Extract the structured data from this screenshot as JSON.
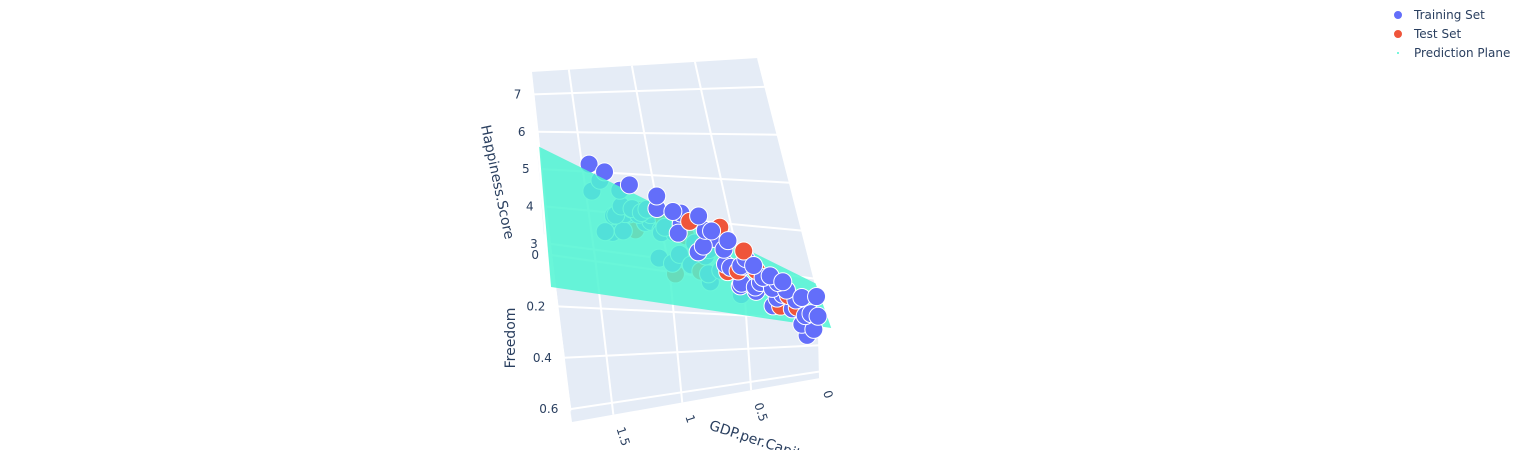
{
  "colors": {
    "training": "#636efa",
    "test": "#ef553b",
    "plane": "#4ff5d2",
    "pane": "#e5ecf6",
    "grid": "#ffffff",
    "text": "#2a3f5f"
  },
  "legend": {
    "items": [
      {
        "label": "Training Set",
        "marker": "circle"
      },
      {
        "label": "Test Set",
        "marker": "circle"
      },
      {
        "label": "Prediction Plane",
        "marker": "dot"
      }
    ]
  },
  "chart_data": {
    "type": "scatter",
    "dimensions": "3d",
    "axes": {
      "x": {
        "label": "GDP.per.Capita.",
        "ticks": [
          "0",
          "0.5",
          "1",
          "1.5"
        ],
        "range": [
          0,
          1.8
        ]
      },
      "y": {
        "label": "Freedom",
        "ticks": [
          "0",
          "0.2",
          "0.4",
          "0.6"
        ],
        "range": [
          0,
          0.65
        ]
      },
      "z": {
        "label": "Happiness.Score",
        "ticks": [
          "3",
          "4",
          "5",
          "6",
          "7"
        ],
        "range": [
          2.7,
          7.6
        ]
      }
    },
    "series": [
      {
        "name": "Training Set",
        "points": [
          [
            1.4,
            0.6,
            7.5
          ],
          [
            1.3,
            0.55,
            7.2
          ],
          [
            1.35,
            0.58,
            7.0
          ],
          [
            1.42,
            0.62,
            7.3
          ],
          [
            1.25,
            0.5,
            6.9
          ],
          [
            1.38,
            0.48,
            6.8
          ],
          [
            1.2,
            0.52,
            6.7
          ],
          [
            1.3,
            0.45,
            6.6
          ],
          [
            1.45,
            0.55,
            6.9
          ],
          [
            1.15,
            0.47,
            6.4
          ],
          [
            1.1,
            0.5,
            6.3
          ],
          [
            1.3,
            0.35,
            6.2
          ],
          [
            1.05,
            0.42,
            6.0
          ],
          [
            0.95,
            0.45,
            5.9
          ],
          [
            1.2,
            0.38,
            6.1
          ],
          [
            1.25,
            0.42,
            6.5
          ],
          [
            1.0,
            0.4,
            5.8
          ],
          [
            0.9,
            0.35,
            5.7
          ],
          [
            1.1,
            0.3,
            5.6
          ],
          [
            1.35,
            0.4,
            6.3
          ],
          [
            0.98,
            0.48,
            5.5
          ],
          [
            1.05,
            0.35,
            5.4
          ],
          [
            0.85,
            0.4,
            5.3
          ],
          [
            1.15,
            0.25,
            5.4
          ],
          [
            0.8,
            0.45,
            5.2
          ],
          [
            1.22,
            0.3,
            5.8
          ],
          [
            0.95,
            0.3,
            5.1
          ],
          [
            0.75,
            0.38,
            5.0
          ],
          [
            0.88,
            0.22,
            4.9
          ],
          [
            1.0,
            0.25,
            5.0
          ],
          [
            0.7,
            0.45,
            4.8
          ],
          [
            0.65,
            0.4,
            4.7
          ],
          [
            0.8,
            0.3,
            4.6
          ],
          [
            0.9,
            0.18,
            4.5
          ],
          [
            0.6,
            0.35,
            4.4
          ],
          [
            1.1,
            0.2,
            5.2
          ],
          [
            0.75,
            0.25,
            4.5
          ],
          [
            0.55,
            0.42,
            4.3
          ],
          [
            0.5,
            0.3,
            4.2
          ],
          [
            0.45,
            0.4,
            4.1
          ],
          [
            0.6,
            0.2,
            4.2
          ],
          [
            0.4,
            0.35,
            4.0
          ],
          [
            0.35,
            0.3,
            3.9
          ],
          [
            0.3,
            0.4,
            3.8
          ],
          [
            0.5,
            0.22,
            3.9
          ],
          [
            0.25,
            0.35,
            3.7
          ],
          [
            0.45,
            0.15,
            3.8
          ],
          [
            0.2,
            0.42,
            3.6
          ],
          [
            0.3,
            0.25,
            3.5
          ],
          [
            0.15,
            0.3,
            3.4
          ],
          [
            0.35,
            0.18,
            3.5
          ],
          [
            0.1,
            0.38,
            3.3
          ],
          [
            0.2,
            0.2,
            3.3
          ],
          [
            0.05,
            0.3,
            3.1
          ],
          [
            0.25,
            0.12,
            3.2
          ],
          [
            0.4,
            0.08,
            3.4
          ],
          [
            0.1,
            0.15,
            3.0
          ],
          [
            0.0,
            0.25,
            2.9
          ],
          [
            0.55,
            0.1,
            4.0
          ],
          [
            0.7,
            0.12,
            4.3
          ],
          [
            0.85,
            0.1,
            4.6
          ],
          [
            1.0,
            0.08,
            4.9
          ],
          [
            0.65,
            0.05,
            4.0
          ],
          [
            0.3,
            0.05,
            3.1
          ],
          [
            0.8,
            0.5,
            5.0
          ],
          [
            1.05,
            0.55,
            5.7
          ],
          [
            0.6,
            0.55,
            4.6
          ],
          [
            1.28,
            0.25,
            6.0
          ],
          [
            0.92,
            0.52,
            5.4
          ],
          [
            0.72,
            0.02,
            4.2
          ],
          [
            1.18,
            0.05,
            5.0
          ],
          [
            0.48,
            0.5,
            4.4
          ],
          [
            1.4,
            0.2,
            6.0
          ],
          [
            0.15,
            0.5,
            3.5
          ],
          [
            0.05,
            0.45,
            3.2
          ],
          [
            1.35,
            0.1,
            5.6
          ],
          [
            1.15,
            0.6,
            6.2
          ],
          [
            0.0,
            0.1,
            2.9
          ],
          [
            0.9,
            0.05,
            4.4
          ],
          [
            0.38,
            0.55,
            4.2
          ],
          [
            0.68,
            0.28,
            4.8
          ],
          [
            0.58,
            0.48,
            4.5
          ],
          [
            1.48,
            0.35,
            6.7
          ],
          [
            1.02,
            0.14,
            4.9
          ],
          [
            0.82,
            0.58,
            5.2
          ],
          [
            0.22,
            0.05,
            3.0
          ],
          [
            0.12,
            0.55,
            3.4
          ],
          [
            1.45,
            0.05,
            5.5
          ]
        ]
      },
      {
        "name": "Test Set",
        "points": [
          [
            1.3,
            0.65,
            7.4
          ],
          [
            1.1,
            0.4,
            6.2
          ],
          [
            0.9,
            0.38,
            5.4
          ],
          [
            0.7,
            0.28,
            4.8
          ],
          [
            0.4,
            0.25,
            3.9
          ],
          [
            0.2,
            0.3,
            3.5
          ],
          [
            0.6,
            0.15,
            4.5
          ],
          [
            0.15,
            0.35,
            3.4
          ],
          [
            1.0,
            0.25,
            5.2
          ],
          [
            0.85,
            0.5,
            5.1
          ],
          [
            0.55,
            0.35,
            4.3
          ],
          [
            0.3,
            0.48,
            3.9
          ],
          [
            1.2,
            0.45,
            6.6
          ],
          [
            0.8,
            0.12,
            4.5
          ],
          [
            0.45,
            0.05,
            3.6
          ],
          [
            1.05,
            0.6,
            5.7
          ],
          [
            0.65,
            0.44,
            4.7
          ]
        ]
      }
    ],
    "prediction_plane": {
      "name": "Prediction Plane",
      "corners": [
        {
          "x": 0,
          "y": 0,
          "z": 2.9
        },
        {
          "x": 1.8,
          "y": 0,
          "z": 5.6
        },
        {
          "x": 1.8,
          "y": 0.65,
          "z": 6.5
        },
        {
          "x": 0,
          "y": 0.65,
          "z": 3.8
        }
      ]
    }
  }
}
